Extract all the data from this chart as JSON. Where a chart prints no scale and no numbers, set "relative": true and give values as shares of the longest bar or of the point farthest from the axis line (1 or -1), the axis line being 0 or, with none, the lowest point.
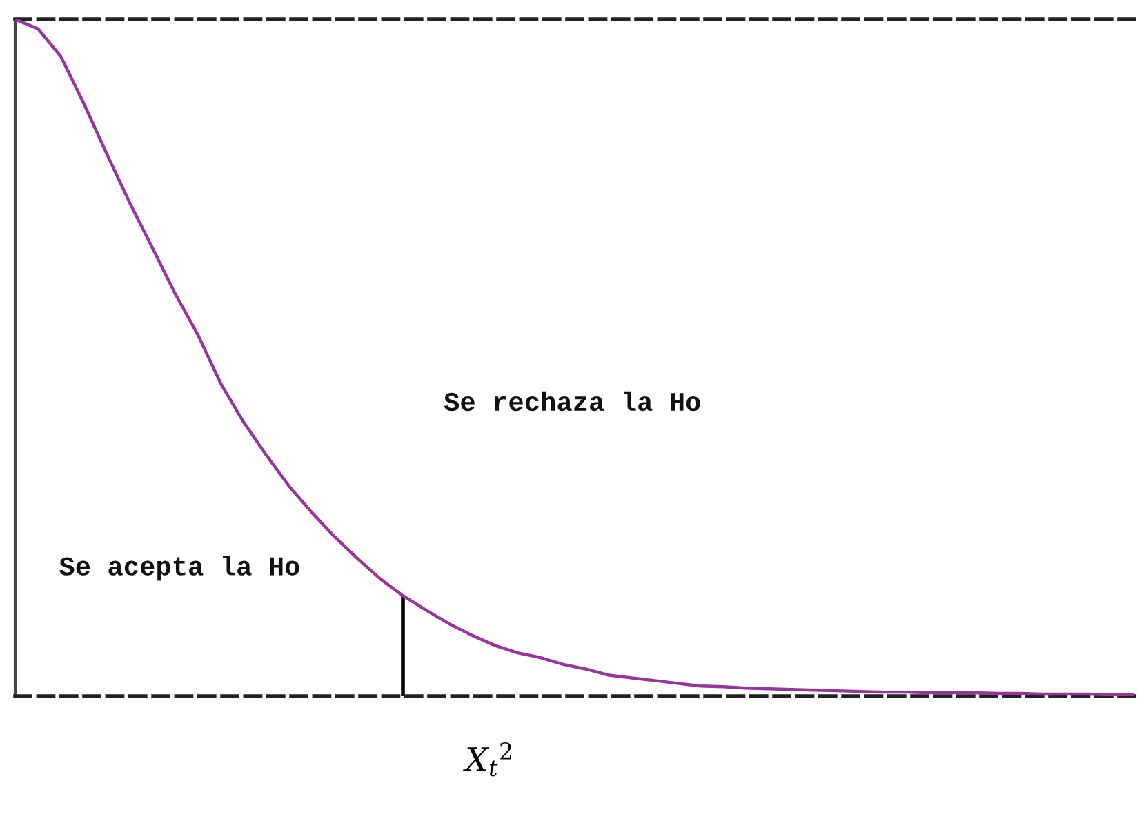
{
  "chart_data": {
    "type": "line",
    "relative": true,
    "xlabel": "X$_{t}$$^{2}$",
    "categories": [
      null,
      null,
      null,
      null,
      null,
      null,
      null,
      null,
      null,
      null,
      null,
      null,
      null,
      null,
      null,
      null,
      null,
      null,
      null,
      null,
      null,
      null,
      null,
      null,
      null,
      null,
      null,
      null,
      null,
      null,
      null,
      null,
      null,
      null,
      null,
      null,
      null,
      null,
      null,
      null,
      null,
      null,
      null,
      null,
      null,
      null,
      null,
      null,
      null,
      null
    ],
    "series": [
      {
        "color": "#9933a0",
        "values": [
          1.0,
          0.986,
          0.945,
          0.876,
          0.802,
          0.73,
          0.663,
          0.595,
          0.534,
          0.462,
          0.405,
          0.356,
          0.31,
          0.271,
          0.235,
          0.203,
          0.173,
          0.148,
          0.127,
          0.107,
          0.09,
          0.075,
          0.064,
          0.057,
          0.047,
          0.04,
          0.031,
          0.027,
          0.023,
          0.019,
          0.015,
          0.014,
          0.012,
          0.011,
          0.01,
          0.009,
          0.008,
          0.007,
          0.006,
          0.006,
          0.005,
          0.005,
          0.005,
          0.004,
          0.004,
          0.003,
          0.003,
          0.003,
          0.002,
          0.002
        ]
      }
    ],
    "annotations": [
      "Se rechaza la Ho",
      "Se acepta la Ho"
    ]
  }
}
